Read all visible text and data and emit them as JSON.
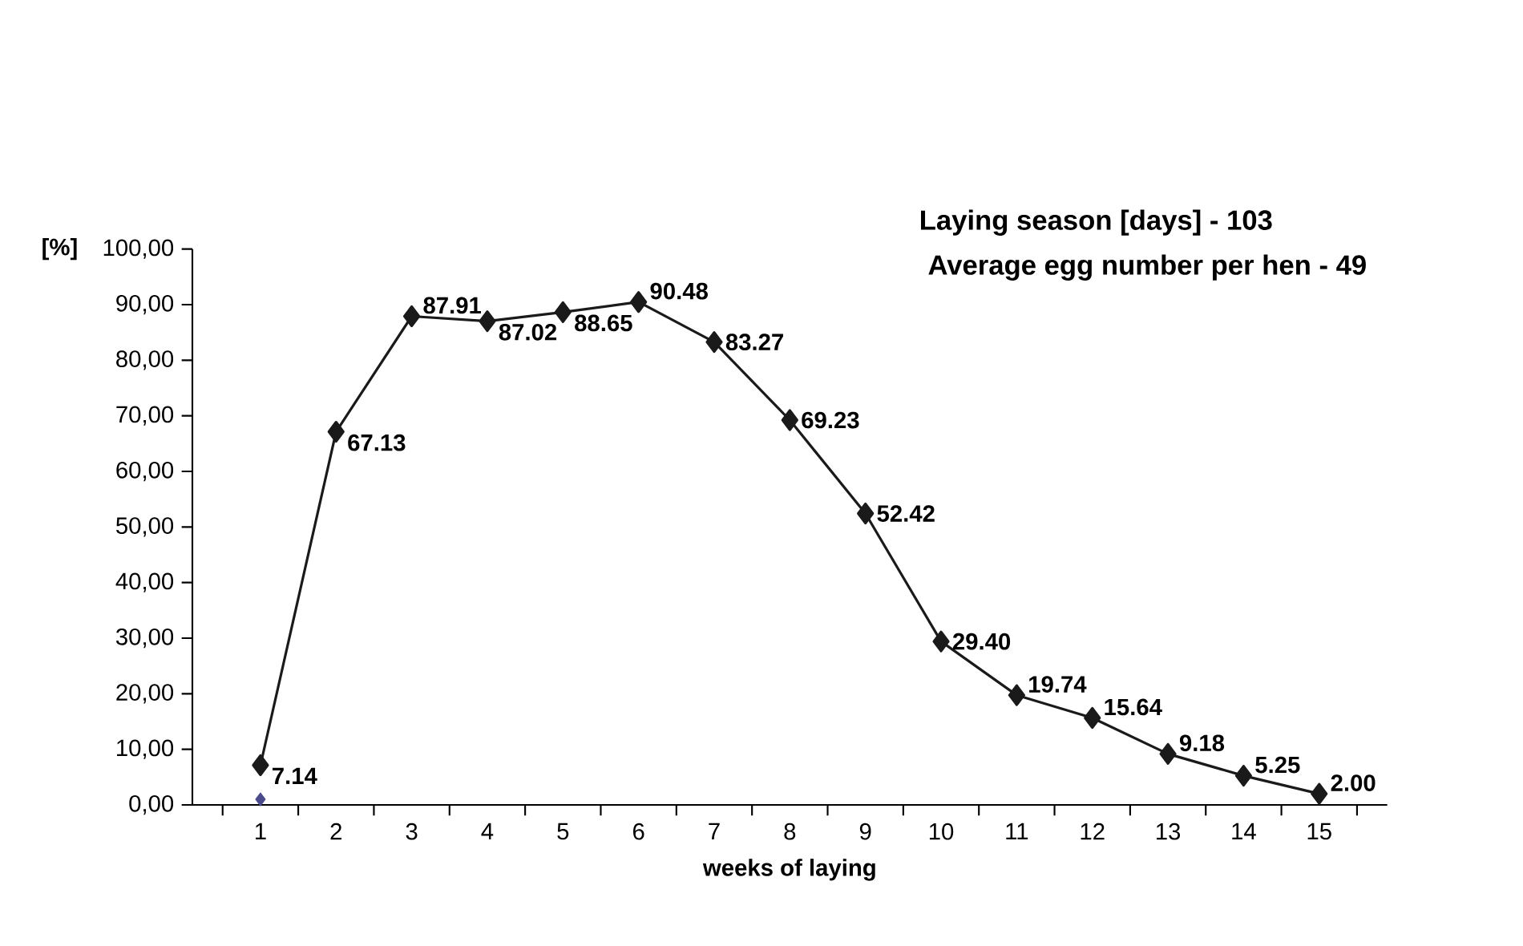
{
  "chart_data": {
    "type": "line",
    "xlabel": "weeks of laying",
    "ylabel": "[%]",
    "annotations": [
      "Laying season [days] - 103",
      "Average egg number per hen - 49"
    ],
    "categories": [
      "1",
      "2",
      "3",
      "4",
      "5",
      "6",
      "7",
      "8",
      "9",
      "10",
      "11",
      "12",
      "13",
      "14",
      "15"
    ],
    "ylim": [
      0,
      100
    ],
    "yticks": [
      {
        "value": 0,
        "label": "0,00"
      },
      {
        "value": 10,
        "label": "10,00"
      },
      {
        "value": 20,
        "label": "20,00"
      },
      {
        "value": 30,
        "label": "30,00"
      },
      {
        "value": 40,
        "label": "40,00"
      },
      {
        "value": 50,
        "label": "50,00"
      },
      {
        "value": 60,
        "label": "60,00"
      },
      {
        "value": 70,
        "label": "70,00"
      },
      {
        "value": 80,
        "label": "80,00"
      },
      {
        "value": 90,
        "label": "90,00"
      },
      {
        "value": 100,
        "label": "100,00"
      }
    ],
    "marker": "diamond",
    "grid": false,
    "series": [
      {
        "color": "#1a1a1a",
        "values": [
          7.14,
          67.13,
          87.91,
          87.02,
          88.65,
          90.48,
          83.27,
          69.23,
          52.42,
          29.4,
          19.74,
          15.64,
          9.18,
          5.25,
          2.0
        ],
        "value_labels": [
          "7.14",
          "67.13",
          "87.91",
          "87.02",
          "88.65",
          "90.48",
          "83.27",
          "69.23",
          "52.42",
          "29.40",
          "19.74",
          "15.64",
          "9.18",
          "5.25",
          "2.00"
        ]
      },
      {
        "type": "scatter",
        "color": "#4b4b8c",
        "values": [
          1,
          null,
          null,
          null,
          null,
          null,
          null,
          null,
          null,
          null,
          null,
          null,
          null,
          null,
          null
        ]
      }
    ]
  }
}
